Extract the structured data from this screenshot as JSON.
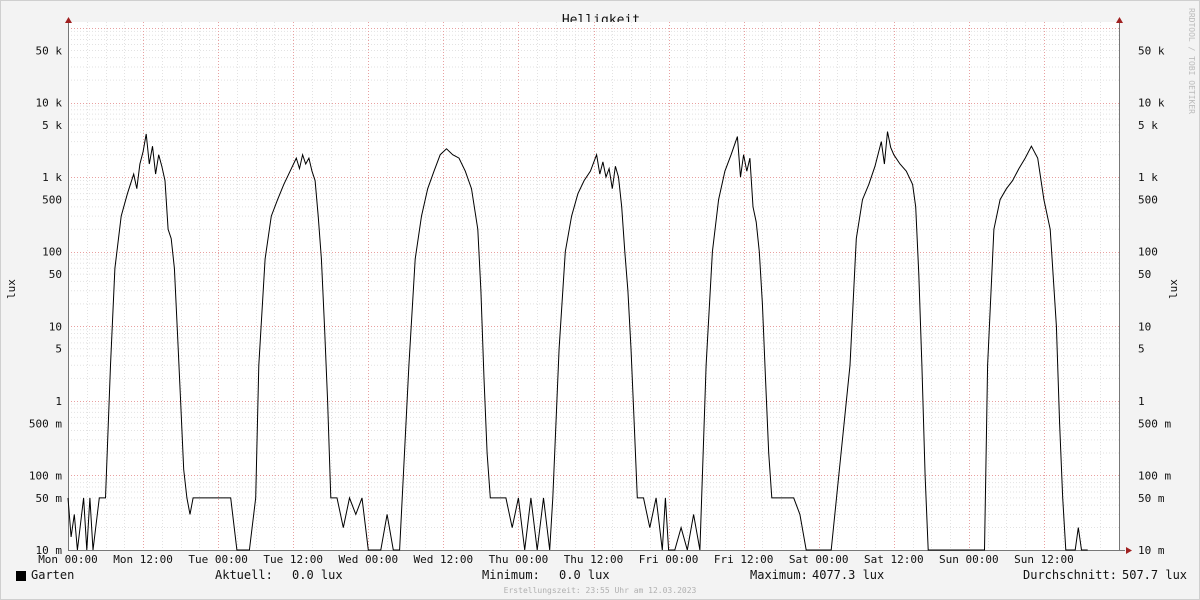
{
  "chart_data": {
    "type": "line",
    "title": "Helligkeit",
    "ylabel": "lux",
    "yscale": "log",
    "ylim": [
      0.01,
      100000
    ],
    "y_ticks": [
      {
        "value": 50000,
        "label": "50 k"
      },
      {
        "value": 10000,
        "label": "10 k"
      },
      {
        "value": 5000,
        "label": "5 k"
      },
      {
        "value": 1000,
        "label": "1 k"
      },
      {
        "value": 500,
        "label": "500"
      },
      {
        "value": 100,
        "label": "100"
      },
      {
        "value": 50,
        "label": "50"
      },
      {
        "value": 10,
        "label": "10"
      },
      {
        "value": 5,
        "label": "5"
      },
      {
        "value": 1,
        "label": "1"
      },
      {
        "value": 0.5,
        "label": "500 m"
      },
      {
        "value": 0.1,
        "label": "100 m"
      },
      {
        "value": 0.05,
        "label": "50 m"
      },
      {
        "value": 0.01,
        "label": "10 m"
      }
    ],
    "x_ticks": [
      "Mon 00:00",
      "Mon 12:00",
      "Tue 00:00",
      "Tue 12:00",
      "Wed 00:00",
      "Wed 12:00",
      "Thu 00:00",
      "Thu 12:00",
      "Fri 00:00",
      "Fri 12:00",
      "Sat 00:00",
      "Sat 12:00",
      "Sun 00:00",
      "Sun 12:00"
    ],
    "xlim_hours": [
      0,
      168
    ],
    "grid": true,
    "series": [
      {
        "name": "Garten",
        "color": "#000000",
        "points": [
          [
            0,
            0.05
          ],
          [
            0.5,
            0.015
          ],
          [
            1,
            0.03
          ],
          [
            1.5,
            0.01
          ],
          [
            2.5,
            0.05
          ],
          [
            3,
            0.01
          ],
          [
            3.5,
            0.05
          ],
          [
            4,
            0.01
          ],
          [
            5,
            0.05
          ],
          [
            6,
            0.05
          ],
          [
            6.8,
            3
          ],
          [
            7.5,
            60
          ],
          [
            8.5,
            300
          ],
          [
            9.5,
            600
          ],
          [
            10.5,
            1100
          ],
          [
            11,
            700
          ],
          [
            11.5,
            1500
          ],
          [
            12,
            2200
          ],
          [
            12.5,
            3800
          ],
          [
            13,
            1500
          ],
          [
            13.5,
            2600
          ],
          [
            14,
            1100
          ],
          [
            14.5,
            2000
          ],
          [
            15,
            1400
          ],
          [
            15.5,
            900
          ],
          [
            16,
            200
          ],
          [
            16.5,
            150
          ],
          [
            17,
            60
          ],
          [
            17.5,
            8
          ],
          [
            18,
            1
          ],
          [
            18.5,
            0.12
          ],
          [
            19,
            0.05
          ],
          [
            19.5,
            0.03
          ],
          [
            20,
            0.05
          ],
          [
            22,
            0.05
          ],
          [
            24,
            0.05
          ],
          [
            25,
            0.05
          ],
          [
            26,
            0.05
          ],
          [
            27,
            0.01
          ],
          [
            28,
            0.01
          ],
          [
            29,
            0.01
          ],
          [
            30,
            0.05
          ],
          [
            30.5,
            3
          ],
          [
            31.5,
            80
          ],
          [
            32.5,
            300
          ],
          [
            33.5,
            500
          ],
          [
            34.5,
            800
          ],
          [
            35.5,
            1200
          ],
          [
            36.5,
            1800
          ],
          [
            37,
            1300
          ],
          [
            37.5,
            2000
          ],
          [
            38,
            1500
          ],
          [
            38.5,
            1800
          ],
          [
            39,
            1200
          ],
          [
            39.5,
            900
          ],
          [
            40,
            300
          ],
          [
            40.5,
            80
          ],
          [
            41,
            10
          ],
          [
            41.5,
            1
          ],
          [
            42,
            0.05
          ],
          [
            43,
            0.05
          ],
          [
            44,
            0.02
          ],
          [
            45,
            0.05
          ],
          [
            46,
            0.03
          ],
          [
            47,
            0.05
          ],
          [
            48,
            0.01
          ],
          [
            49,
            0.01
          ],
          [
            50,
            0.01
          ],
          [
            51,
            0.03
          ],
          [
            52,
            0.01
          ],
          [
            53,
            0.01
          ],
          [
            54.5,
            3
          ],
          [
            55.5,
            80
          ],
          [
            56.5,
            300
          ],
          [
            57.5,
            700
          ],
          [
            58.5,
            1200
          ],
          [
            59.5,
            2000
          ],
          [
            60.5,
            2400
          ],
          [
            61.5,
            2000
          ],
          [
            62.5,
            1800
          ],
          [
            63.5,
            1200
          ],
          [
            64.5,
            700
          ],
          [
            65.5,
            200
          ],
          [
            66,
            30
          ],
          [
            66.5,
            2
          ],
          [
            67,
            0.2
          ],
          [
            67.5,
            0.05
          ],
          [
            68,
            0.05
          ],
          [
            69,
            0.05
          ],
          [
            70,
            0.05
          ],
          [
            71,
            0.02
          ],
          [
            72,
            0.05
          ],
          [
            73,
            0.01
          ],
          [
            74,
            0.05
          ],
          [
            75,
            0.01
          ],
          [
            76,
            0.05
          ],
          [
            77,
            0.01
          ],
          [
            77.5,
            0.05
          ],
          [
            78.5,
            5
          ],
          [
            79.5,
            100
          ],
          [
            80.5,
            300
          ],
          [
            81.5,
            600
          ],
          [
            82.5,
            900
          ],
          [
            83.5,
            1200
          ],
          [
            84.5,
            2000
          ],
          [
            85,
            1100
          ],
          [
            85.5,
            1600
          ],
          [
            86,
            1000
          ],
          [
            86.5,
            1300
          ],
          [
            87,
            700
          ],
          [
            87.5,
            1400
          ],
          [
            88,
            1000
          ],
          [
            88.5,
            400
          ],
          [
            89,
            100
          ],
          [
            89.5,
            30
          ],
          [
            90,
            5
          ],
          [
            90.5,
            0.5
          ],
          [
            91,
            0.05
          ],
          [
            92,
            0.05
          ],
          [
            93,
            0.02
          ],
          [
            94,
            0.05
          ],
          [
            95,
            0.01
          ],
          [
            95.5,
            0.05
          ],
          [
            96,
            0.01
          ],
          [
            97,
            0.01
          ],
          [
            98,
            0.02
          ],
          [
            99,
            0.01
          ],
          [
            100,
            0.03
          ],
          [
            101,
            0.01
          ],
          [
            102,
            3
          ],
          [
            103,
            100
          ],
          [
            104,
            500
          ],
          [
            105,
            1200
          ],
          [
            106,
            2000
          ],
          [
            107,
            3500
          ],
          [
            107.5,
            1000
          ],
          [
            108,
            2000
          ],
          [
            108.5,
            1200
          ],
          [
            109,
            1800
          ],
          [
            109.5,
            400
          ],
          [
            110,
            250
          ],
          [
            110.5,
            100
          ],
          [
            111,
            20
          ],
          [
            111.5,
            2
          ],
          [
            112,
            0.2
          ],
          [
            112.5,
            0.05
          ],
          [
            114,
            0.05
          ],
          [
            116,
            0.05
          ],
          [
            117,
            0.03
          ],
          [
            118,
            0.01
          ],
          [
            119,
            0.01
          ],
          [
            120,
            0.01
          ],
          [
            121,
            0.01
          ],
          [
            122,
            0.01
          ],
          [
            125,
            3
          ],
          [
            126,
            150
          ],
          [
            127,
            500
          ],
          [
            128,
            800
          ],
          [
            129,
            1400
          ],
          [
            130,
            3000
          ],
          [
            130.5,
            1500
          ],
          [
            131,
            4077
          ],
          [
            131.5,
            2500
          ],
          [
            132,
            2000
          ],
          [
            133,
            1500
          ],
          [
            134,
            1200
          ],
          [
            135,
            800
          ],
          [
            135.5,
            400
          ],
          [
            136,
            50
          ],
          [
            136.5,
            3
          ],
          [
            137,
            0.1
          ],
          [
            137.5,
            0.01
          ],
          [
            140,
            0.01
          ],
          [
            145,
            0.01
          ],
          [
            146.5,
            0.01
          ],
          [
            147,
            3
          ],
          [
            148,
            200
          ],
          [
            149,
            500
          ],
          [
            150,
            700
          ],
          [
            151,
            900
          ],
          [
            152,
            1300
          ],
          [
            153,
            1800
          ],
          [
            154,
            2600
          ],
          [
            155,
            1800
          ],
          [
            156,
            500
          ],
          [
            157,
            200
          ],
          [
            158,
            10
          ],
          [
            158.5,
            0.5
          ],
          [
            159,
            0.05
          ],
          [
            159.5,
            0.01
          ],
          [
            161,
            0.01
          ],
          [
            161.5,
            0.02
          ],
          [
            162,
            0.01
          ],
          [
            163,
            0.01
          ]
        ]
      }
    ]
  },
  "legend": {
    "series_name": "Garten",
    "aktuell_label": "Aktuell:",
    "aktuell_value": "0.0 lux",
    "minimum_label": "Minimum:",
    "minimum_value": "0.0 lux",
    "maximum_label": "Maximum:",
    "maximum_value": "4077.3 lux",
    "durchschnitt_label": "Durchschnitt:",
    "durchschnitt_value": "507.7 lux"
  },
  "credit": "RRDTOOL / TOBI OETIKER",
  "footer": "Erstellungszeit: 23:55 Uhr am 12.03.2023"
}
